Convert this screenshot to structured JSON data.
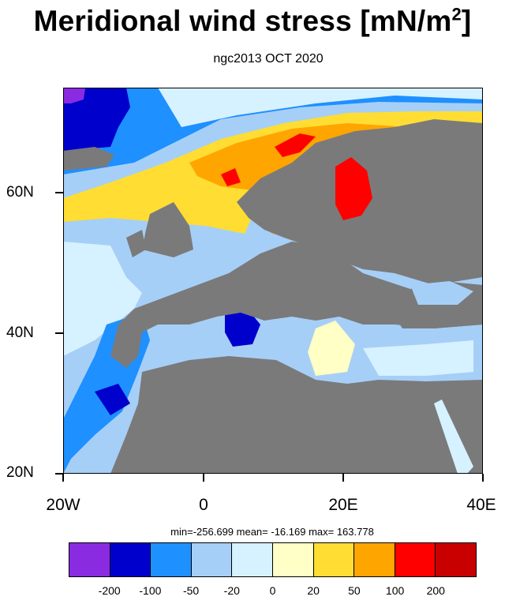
{
  "title_main": "Meridional wind stress [mN/m",
  "title_sup": "2",
  "title_end": "]",
  "subtitle": "ngc2013 OCT 2020",
  "axes": {
    "y_ticks": [
      "60N",
      "40N",
      "20N"
    ],
    "x_ticks": [
      "20W",
      "0",
      "20E",
      "40E"
    ]
  },
  "stats": "min=-256.699  mean= -16.169  max= 163.778",
  "colorbar": {
    "labels": [
      "-200",
      "-100",
      "-50",
      "-20",
      "0",
      "20",
      "50",
      "100",
      "200"
    ],
    "colors": [
      "#8a2be2",
      "#0000cd",
      "#1e90ff",
      "#a6cff7",
      "#d6f1ff",
      "#ffffc6",
      "#ffdd33",
      "#ffa500",
      "#ff0000",
      "#c80000"
    ]
  },
  "colors": {
    "land": "#7a7a7a"
  }
}
